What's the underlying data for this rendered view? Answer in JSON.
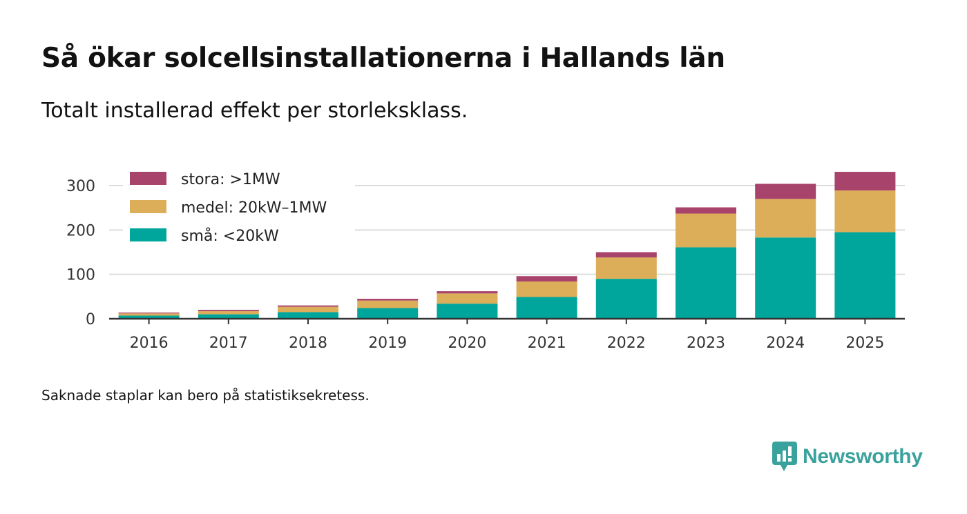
{
  "title": "Så ökar solcellsinstallationerna i Hallands län",
  "subtitle": "Totalt installerad effekt per storleksklass.",
  "note": "Saknade staplar kan bero på statistiksekretess.",
  "brand": {
    "name": "Newsworthy",
    "color": "#3aa29c"
  },
  "chart_data": {
    "type": "bar",
    "stacked": true,
    "title": "Så ökar solcellsinstallationerna i Hallands län",
    "subtitle": "Totalt installerad effekt per storleksklass.",
    "xlabel": "",
    "ylabel": "",
    "categories": [
      "2016",
      "2017",
      "2018",
      "2019",
      "2020",
      "2021",
      "2022",
      "2023",
      "2024",
      "2025"
    ],
    "ylim": [
      0,
      330
    ],
    "yticks": [
      0,
      100,
      200,
      300
    ],
    "grid": true,
    "legend_position": "top-left",
    "series": [
      {
        "name": "små: <20kW",
        "color": "#00a59b",
        "values": [
          7,
          10,
          15,
          24,
          34,
          49,
          90,
          161,
          183,
          195
        ]
      },
      {
        "name": "medel: 20kW–1MW",
        "color": "#dcae59",
        "values": [
          5,
          7,
          12,
          17,
          23,
          35,
          48,
          76,
          87,
          94
        ]
      },
      {
        "name": "stora: >1MW",
        "color": "#a8436b",
        "values": [
          2,
          3,
          3,
          4,
          5,
          12,
          12,
          14,
          34,
          42
        ]
      }
    ]
  }
}
